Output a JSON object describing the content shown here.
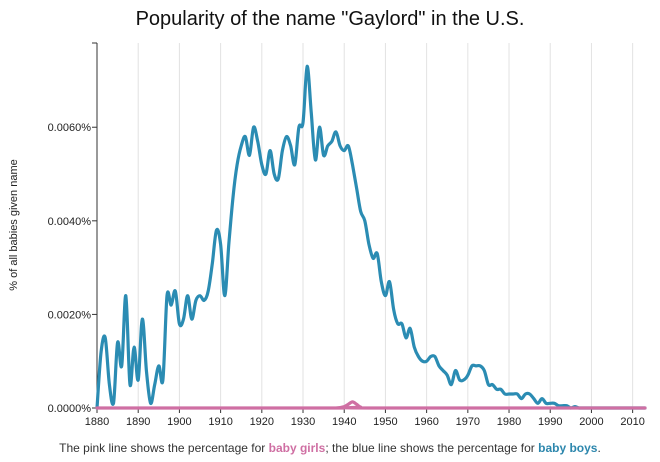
{
  "chart_data": {
    "type": "line",
    "title": "Popularity of the name \"Gaylord\" in the U.S.",
    "ylabel": "% of all babies given name",
    "xlabel": "",
    "xlim": [
      1880,
      2013
    ],
    "ylim": [
      0,
      0.0078
    ],
    "x_ticks": [
      1880,
      1890,
      1900,
      1910,
      1920,
      1930,
      1940,
      1950,
      1960,
      1970,
      1980,
      1990,
      2000,
      2010
    ],
    "y_ticks": [
      {
        "value": 0.0,
        "label": "0.0000%"
      },
      {
        "value": 0.002,
        "label": "0.0020%"
      },
      {
        "value": 0.004,
        "label": "0.0040%"
      },
      {
        "value": 0.006,
        "label": "0.0060%"
      }
    ],
    "grid": "vertical",
    "series": [
      {
        "name": "baby boys",
        "color": "#2b8cb3",
        "points": [
          [
            1880,
            0.0
          ],
          [
            1881,
            0.0012
          ],
          [
            1882,
            0.0015
          ],
          [
            1883,
            0.0005
          ],
          [
            1884,
            0.0001
          ],
          [
            1885,
            0.0014
          ],
          [
            1886,
            0.0009
          ],
          [
            1887,
            0.0024
          ],
          [
            1888,
            0.0005
          ],
          [
            1889,
            0.0013
          ],
          [
            1890,
            0.0006
          ],
          [
            1891,
            0.0019
          ],
          [
            1892,
            0.0008
          ],
          [
            1893,
            0.0001
          ],
          [
            1894,
            0.0005
          ],
          [
            1895,
            0.0009
          ],
          [
            1896,
            0.0006
          ],
          [
            1897,
            0.0024
          ],
          [
            1898,
            0.0022
          ],
          [
            1899,
            0.0025
          ],
          [
            1900,
            0.0018
          ],
          [
            1901,
            0.0019
          ],
          [
            1902,
            0.0024
          ],
          [
            1903,
            0.0019
          ],
          [
            1904,
            0.0023
          ],
          [
            1905,
            0.0024
          ],
          [
            1906,
            0.0023
          ],
          [
            1907,
            0.0025
          ],
          [
            1908,
            0.0031
          ],
          [
            1909,
            0.0038
          ],
          [
            1910,
            0.0035
          ],
          [
            1911,
            0.0024
          ],
          [
            1912,
            0.0035
          ],
          [
            1913,
            0.0045
          ],
          [
            1914,
            0.0052
          ],
          [
            1915,
            0.0056
          ],
          [
            1916,
            0.0058
          ],
          [
            1917,
            0.0054
          ],
          [
            1918,
            0.006
          ],
          [
            1919,
            0.0057
          ],
          [
            1920,
            0.0052
          ],
          [
            1921,
            0.005
          ],
          [
            1922,
            0.0055
          ],
          [
            1923,
            0.005
          ],
          [
            1924,
            0.0049
          ],
          [
            1925,
            0.0055
          ],
          [
            1926,
            0.0058
          ],
          [
            1927,
            0.0056
          ],
          [
            1928,
            0.0052
          ],
          [
            1929,
            0.006
          ],
          [
            1930,
            0.0061
          ],
          [
            1931,
            0.0073
          ],
          [
            1932,
            0.0063
          ],
          [
            1933,
            0.0053
          ],
          [
            1934,
            0.006
          ],
          [
            1935,
            0.0054
          ],
          [
            1936,
            0.0056
          ],
          [
            1937,
            0.0057
          ],
          [
            1938,
            0.0059
          ],
          [
            1939,
            0.0056
          ],
          [
            1940,
            0.0055
          ],
          [
            1941,
            0.0056
          ],
          [
            1942,
            0.0052
          ],
          [
            1943,
            0.0047
          ],
          [
            1944,
            0.0042
          ],
          [
            1945,
            0.004
          ],
          [
            1946,
            0.0035
          ],
          [
            1947,
            0.0032
          ],
          [
            1948,
            0.0033
          ],
          [
            1949,
            0.0027
          ],
          [
            1950,
            0.0024
          ],
          [
            1951,
            0.0027
          ],
          [
            1952,
            0.0021
          ],
          [
            1953,
            0.0018
          ],
          [
            1954,
            0.0018
          ],
          [
            1955,
            0.0015
          ],
          [
            1956,
            0.0017
          ],
          [
            1957,
            0.0013
          ],
          [
            1958,
            0.0011
          ],
          [
            1959,
            0.001
          ],
          [
            1960,
            0.001
          ],
          [
            1961,
            0.0011
          ],
          [
            1962,
            0.0011
          ],
          [
            1963,
            0.0009
          ],
          [
            1964,
            0.0008
          ],
          [
            1965,
            0.0007
          ],
          [
            1966,
            0.0005
          ],
          [
            1967,
            0.0008
          ],
          [
            1968,
            0.0006
          ],
          [
            1969,
            0.0006
          ],
          [
            1970,
            0.0007
          ],
          [
            1971,
            0.0009
          ],
          [
            1972,
            0.0009
          ],
          [
            1973,
            0.0009
          ],
          [
            1974,
            0.0008
          ],
          [
            1975,
            0.0005
          ],
          [
            1976,
            0.0005
          ],
          [
            1977,
            0.0004
          ],
          [
            1978,
            0.0004
          ],
          [
            1979,
            0.0003
          ],
          [
            1980,
            0.0003
          ],
          [
            1981,
            0.0003
          ],
          [
            1982,
            0.0003
          ],
          [
            1983,
            0.0002
          ],
          [
            1984,
            0.0003
          ],
          [
            1985,
            0.0003
          ],
          [
            1986,
            0.0002
          ],
          [
            1987,
            0.0001
          ],
          [
            1988,
            0.0002
          ],
          [
            1989,
            0.0001
          ],
          [
            1990,
            0.0001
          ],
          [
            1991,
            0.0001
          ],
          [
            1992,
            5e-05
          ],
          [
            1993,
            5e-05
          ],
          [
            1994,
            5e-05
          ],
          [
            1995,
            0.0
          ],
          [
            1996,
            3e-05
          ],
          [
            1997,
            0.0
          ],
          [
            1998,
            0.0
          ],
          [
            1999,
            0.0
          ],
          [
            2000,
            0.0
          ],
          [
            2001,
            0.0
          ],
          [
            2002,
            0.0
          ],
          [
            2003,
            0.0
          ],
          [
            2004,
            0.0
          ],
          [
            2005,
            0.0
          ],
          [
            2006,
            0.0
          ],
          [
            2007,
            0.0
          ],
          [
            2008,
            0.0
          ],
          [
            2009,
            0.0
          ],
          [
            2010,
            0.0
          ],
          [
            2011,
            0.0
          ],
          [
            2012,
            0.0
          ],
          [
            2013,
            0.0
          ]
        ]
      },
      {
        "name": "baby girls",
        "color": "#cf6fa3",
        "points": [
          [
            1880,
            0.0
          ],
          [
            1935,
            0.0
          ],
          [
            1938,
            0.0
          ],
          [
            1940,
            3e-05
          ],
          [
            1941,
            8e-05
          ],
          [
            1942,
            0.00013
          ],
          [
            1943,
            8e-05
          ],
          [
            1944,
            2e-05
          ],
          [
            1946,
            0.0
          ],
          [
            2013,
            0.0
          ]
        ]
      }
    ]
  },
  "caption": {
    "prefix": "The pink line shows the percentage for ",
    "girls_label": "baby girls",
    "middle": "; the blue line shows the percentage for ",
    "boys_label": "baby boys",
    "suffix": "."
  }
}
